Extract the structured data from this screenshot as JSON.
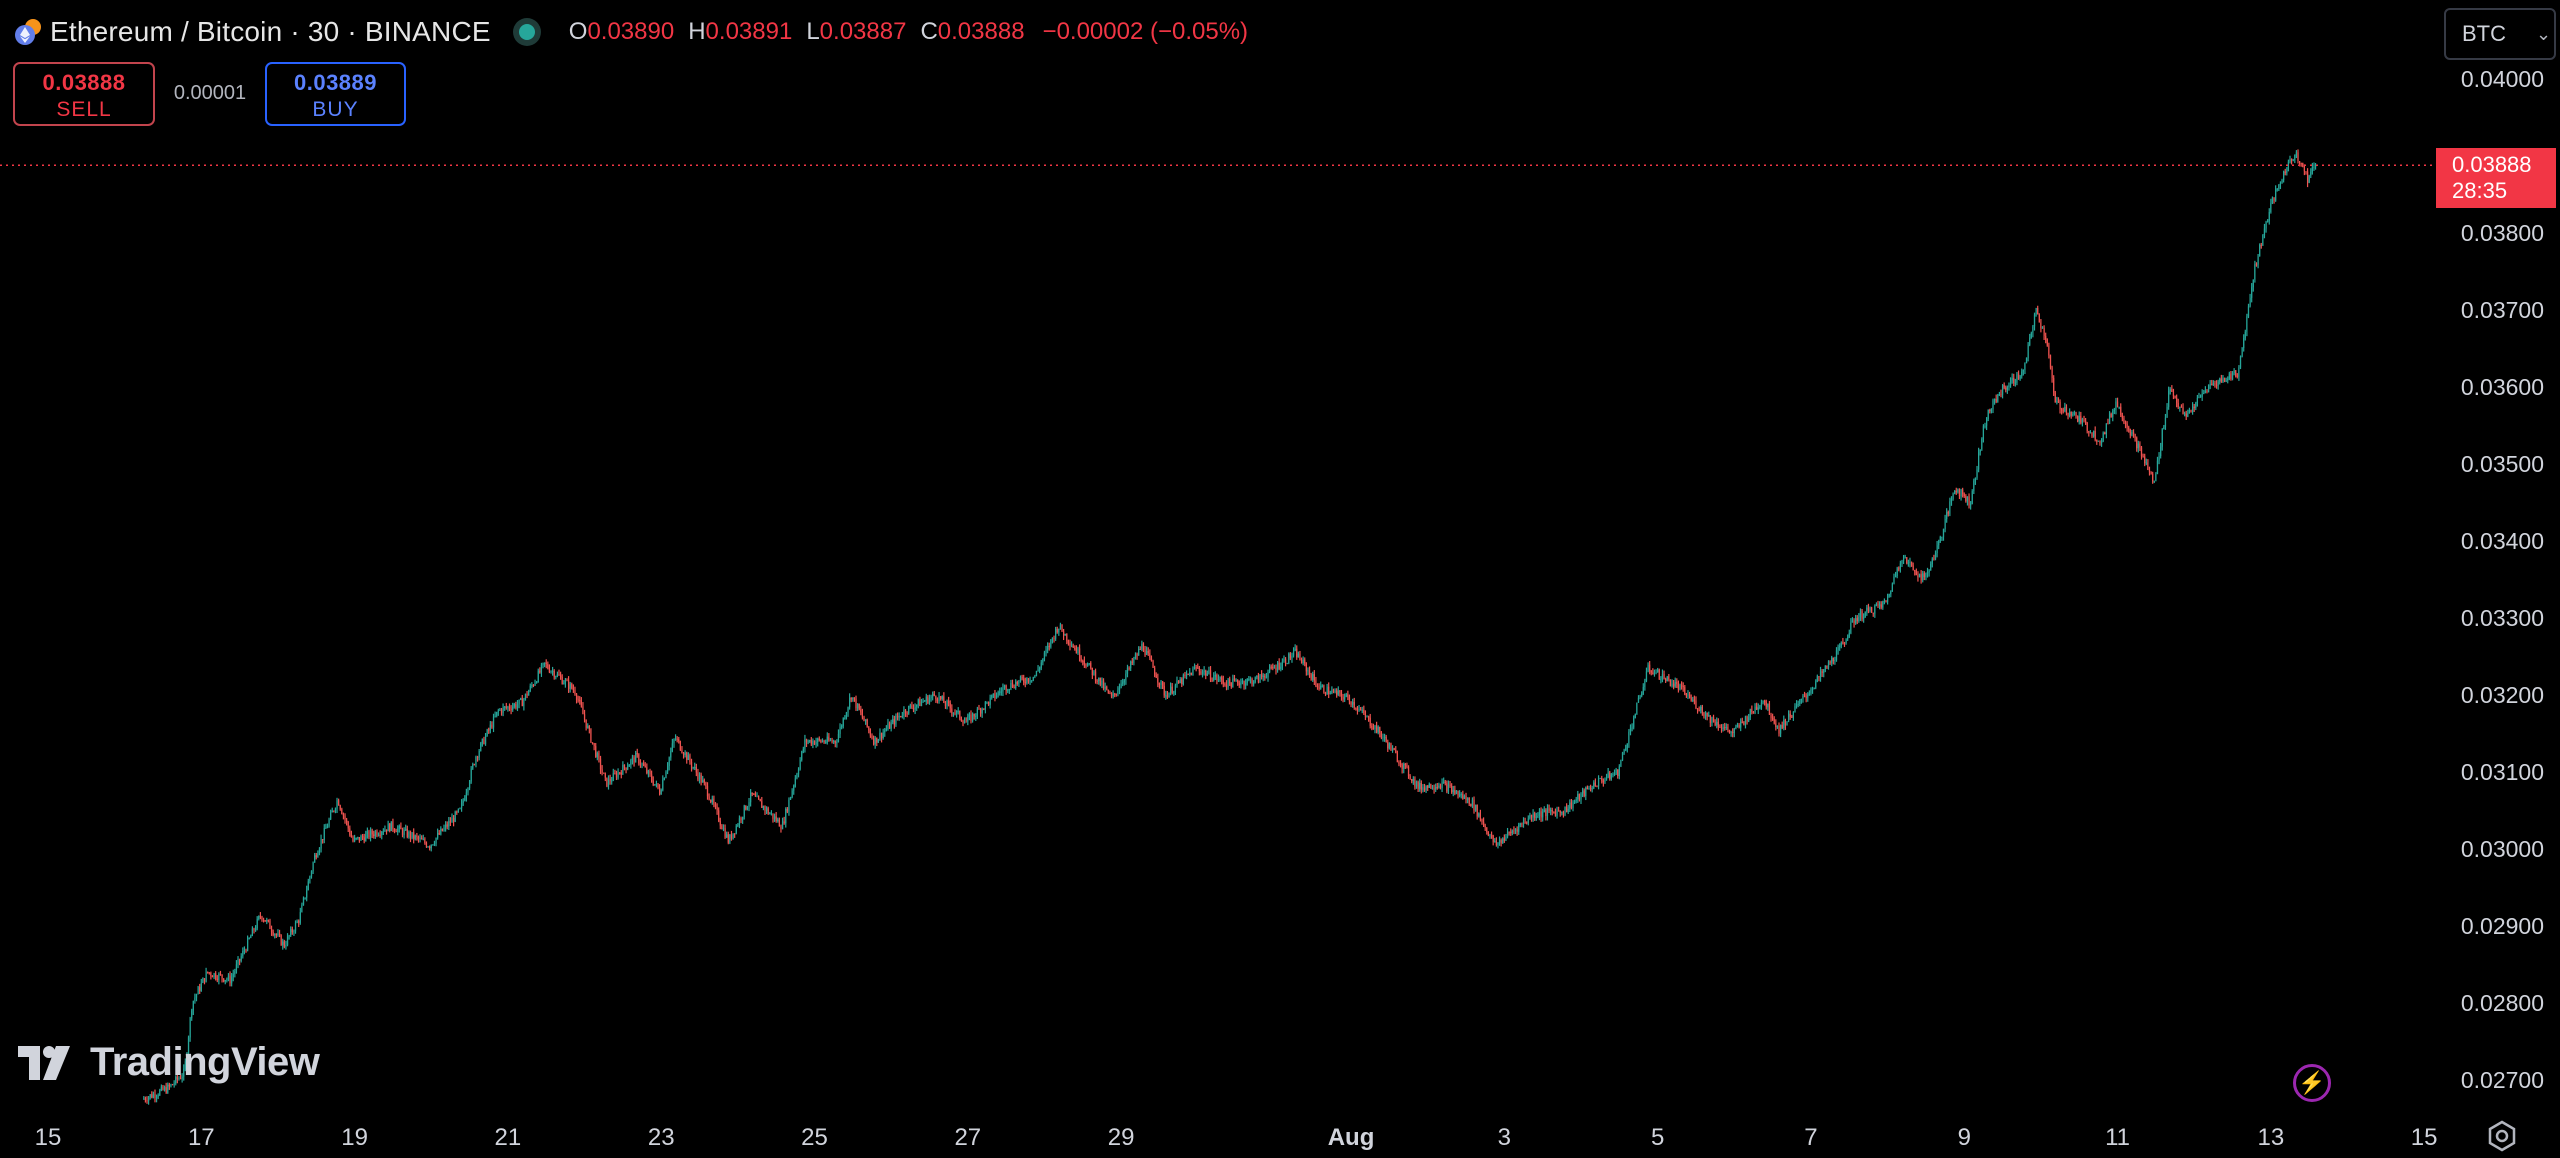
{
  "symbol": {
    "title": "Ethereum / Bitcoin · 30 · BINANCE",
    "ohlc": {
      "o_label": "O",
      "o": "0.03890",
      "h_label": "H",
      "h": "0.03891",
      "l_label": "L",
      "l": "0.03887",
      "c_label": "C",
      "c": "0.03888",
      "change": "−0.00002 (−0.05%)"
    },
    "market_status": "open"
  },
  "trade": {
    "sell_price": "0.03888",
    "sell_label": "SELL",
    "spread": "0.00001",
    "buy_price": "0.03889",
    "buy_label": "BUY"
  },
  "currency_button": "BTC",
  "last_price": {
    "value": "0.03888",
    "countdown": "28:35"
  },
  "branding": "TradingView",
  "colors": {
    "up": "#26a69a",
    "down": "#ef5350",
    "last_price": "#f23645",
    "buy": "#2962ff",
    "bolt": "#9c27b0"
  },
  "icons": [
    "eth-btc-symbol-icon",
    "market-open-dot-icon",
    "chevron-down-icon",
    "lightning-icon",
    "settings-icon",
    "tradingview-logo-icon"
  ],
  "chart_data": {
    "type": "candlestick",
    "interval": "30",
    "y_axis_ticks": [
      "0.04000",
      "0.03900",
      "0.03800",
      "0.03700",
      "0.03600",
      "0.03500",
      "0.03400",
      "0.03300",
      "0.03200",
      "0.03100",
      "0.03000",
      "0.02900",
      "0.02800",
      "0.02700"
    ],
    "x_axis_ticks": [
      {
        "label": "15",
        "day": 15
      },
      {
        "label": "17",
        "day": 17
      },
      {
        "label": "19",
        "day": 19
      },
      {
        "label": "21",
        "day": 21
      },
      {
        "label": "23",
        "day": 23
      },
      {
        "label": "25",
        "day": 25
      },
      {
        "label": "27",
        "day": 27
      },
      {
        "label": "29",
        "day": 29
      },
      {
        "label": "Aug",
        "day": 32
      },
      {
        "label": "3",
        "day": 34
      },
      {
        "label": "5",
        "day": 36
      },
      {
        "label": "7",
        "day": 38
      },
      {
        "label": "9",
        "day": 40
      },
      {
        "label": "11",
        "day": 42
      },
      {
        "label": "13",
        "day": 44
      },
      {
        "label": "15",
        "day": 46
      }
    ],
    "ylim": [
      0.0267,
      0.0405
    ],
    "xlim": [
      14.6,
      46.75
    ],
    "price_path": [
      {
        "day": 16.25,
        "price": 0.02675
      },
      {
        "day": 16.6,
        "price": 0.0269
      },
      {
        "day": 16.8,
        "price": 0.0271
      },
      {
        "day": 16.9,
        "price": 0.028
      },
      {
        "day": 17.1,
        "price": 0.0284
      },
      {
        "day": 17.4,
        "price": 0.0283
      },
      {
        "day": 17.8,
        "price": 0.02915
      },
      {
        "day": 18.1,
        "price": 0.02875
      },
      {
        "day": 18.3,
        "price": 0.0291
      },
      {
        "day": 18.5,
        "price": 0.0299
      },
      {
        "day": 18.8,
        "price": 0.03065
      },
      {
        "day": 19.0,
        "price": 0.0301
      },
      {
        "day": 19.5,
        "price": 0.0303
      },
      {
        "day": 20.0,
        "price": 0.03005
      },
      {
        "day": 20.4,
        "price": 0.0305
      },
      {
        "day": 20.6,
        "price": 0.0312
      },
      {
        "day": 20.9,
        "price": 0.0318
      },
      {
        "day": 21.2,
        "price": 0.0319
      },
      {
        "day": 21.5,
        "price": 0.0324
      },
      {
        "day": 21.9,
        "price": 0.03205
      },
      {
        "day": 22.3,
        "price": 0.03085
      },
      {
        "day": 22.7,
        "price": 0.0312
      },
      {
        "day": 23.0,
        "price": 0.03075
      },
      {
        "day": 23.2,
        "price": 0.03145
      },
      {
        "day": 23.6,
        "price": 0.0308
      },
      {
        "day": 23.9,
        "price": 0.0301
      },
      {
        "day": 24.2,
        "price": 0.0307
      },
      {
        "day": 24.6,
        "price": 0.0303
      },
      {
        "day": 24.9,
        "price": 0.0314
      },
      {
        "day": 25.3,
        "price": 0.0314
      },
      {
        "day": 25.5,
        "price": 0.032
      },
      {
        "day": 25.8,
        "price": 0.0314
      },
      {
        "day": 26.2,
        "price": 0.0318
      },
      {
        "day": 26.6,
        "price": 0.032
      },
      {
        "day": 27.0,
        "price": 0.03165
      },
      {
        "day": 27.5,
        "price": 0.0321
      },
      {
        "day": 27.9,
        "price": 0.03225
      },
      {
        "day": 28.2,
        "price": 0.0329
      },
      {
        "day": 28.5,
        "price": 0.0325
      },
      {
        "day": 28.9,
        "price": 0.03195
      },
      {
        "day": 29.3,
        "price": 0.03265
      },
      {
        "day": 29.6,
        "price": 0.032
      },
      {
        "day": 30.0,
        "price": 0.03235
      },
      {
        "day": 30.4,
        "price": 0.03215
      },
      {
        "day": 30.8,
        "price": 0.0322
      },
      {
        "day": 31.3,
        "price": 0.03255
      },
      {
        "day": 31.6,
        "price": 0.0321
      },
      {
        "day": 32.0,
        "price": 0.03195
      },
      {
        "day": 32.4,
        "price": 0.0315
      },
      {
        "day": 32.9,
        "price": 0.0308
      },
      {
        "day": 33.2,
        "price": 0.03085
      },
      {
        "day": 33.6,
        "price": 0.0306
      },
      {
        "day": 33.9,
        "price": 0.03005
      },
      {
        "day": 34.4,
        "price": 0.03045
      },
      {
        "day": 34.8,
        "price": 0.0305
      },
      {
        "day": 35.2,
        "price": 0.03085
      },
      {
        "day": 35.5,
        "price": 0.031
      },
      {
        "day": 35.9,
        "price": 0.03235
      },
      {
        "day": 36.3,
        "price": 0.0321
      },
      {
        "day": 36.7,
        "price": 0.0317
      },
      {
        "day": 37.0,
        "price": 0.0315
      },
      {
        "day": 37.4,
        "price": 0.03195
      },
      {
        "day": 37.6,
        "price": 0.03155
      },
      {
        "day": 38.0,
        "price": 0.03205
      },
      {
        "day": 38.4,
        "price": 0.0326
      },
      {
        "day": 38.6,
        "price": 0.033
      },
      {
        "day": 39.0,
        "price": 0.0332
      },
      {
        "day": 39.2,
        "price": 0.0338
      },
      {
        "day": 39.5,
        "price": 0.0335
      },
      {
        "day": 39.7,
        "price": 0.034
      },
      {
        "day": 39.9,
        "price": 0.0347
      },
      {
        "day": 40.1,
        "price": 0.0345
      },
      {
        "day": 40.3,
        "price": 0.0356
      },
      {
        "day": 40.5,
        "price": 0.03595
      },
      {
        "day": 40.8,
        "price": 0.0362
      },
      {
        "day": 40.95,
        "price": 0.037
      },
      {
        "day": 41.1,
        "price": 0.0366
      },
      {
        "day": 41.2,
        "price": 0.0358
      },
      {
        "day": 41.5,
        "price": 0.0356
      },
      {
        "day": 41.8,
        "price": 0.0353
      },
      {
        "day": 42.0,
        "price": 0.0358
      },
      {
        "day": 42.3,
        "price": 0.0352
      },
      {
        "day": 42.5,
        "price": 0.03475
      },
      {
        "day": 42.7,
        "price": 0.036
      },
      {
        "day": 42.9,
        "price": 0.0356
      },
      {
        "day": 43.2,
        "price": 0.036
      },
      {
        "day": 43.6,
        "price": 0.0362
      },
      {
        "day": 43.8,
        "price": 0.0375
      },
      {
        "day": 44.0,
        "price": 0.0383
      },
      {
        "day": 44.2,
        "price": 0.0388
      },
      {
        "day": 44.35,
        "price": 0.03905
      },
      {
        "day": 44.5,
        "price": 0.0387
      },
      {
        "day": 44.6,
        "price": 0.03888
      }
    ]
  }
}
